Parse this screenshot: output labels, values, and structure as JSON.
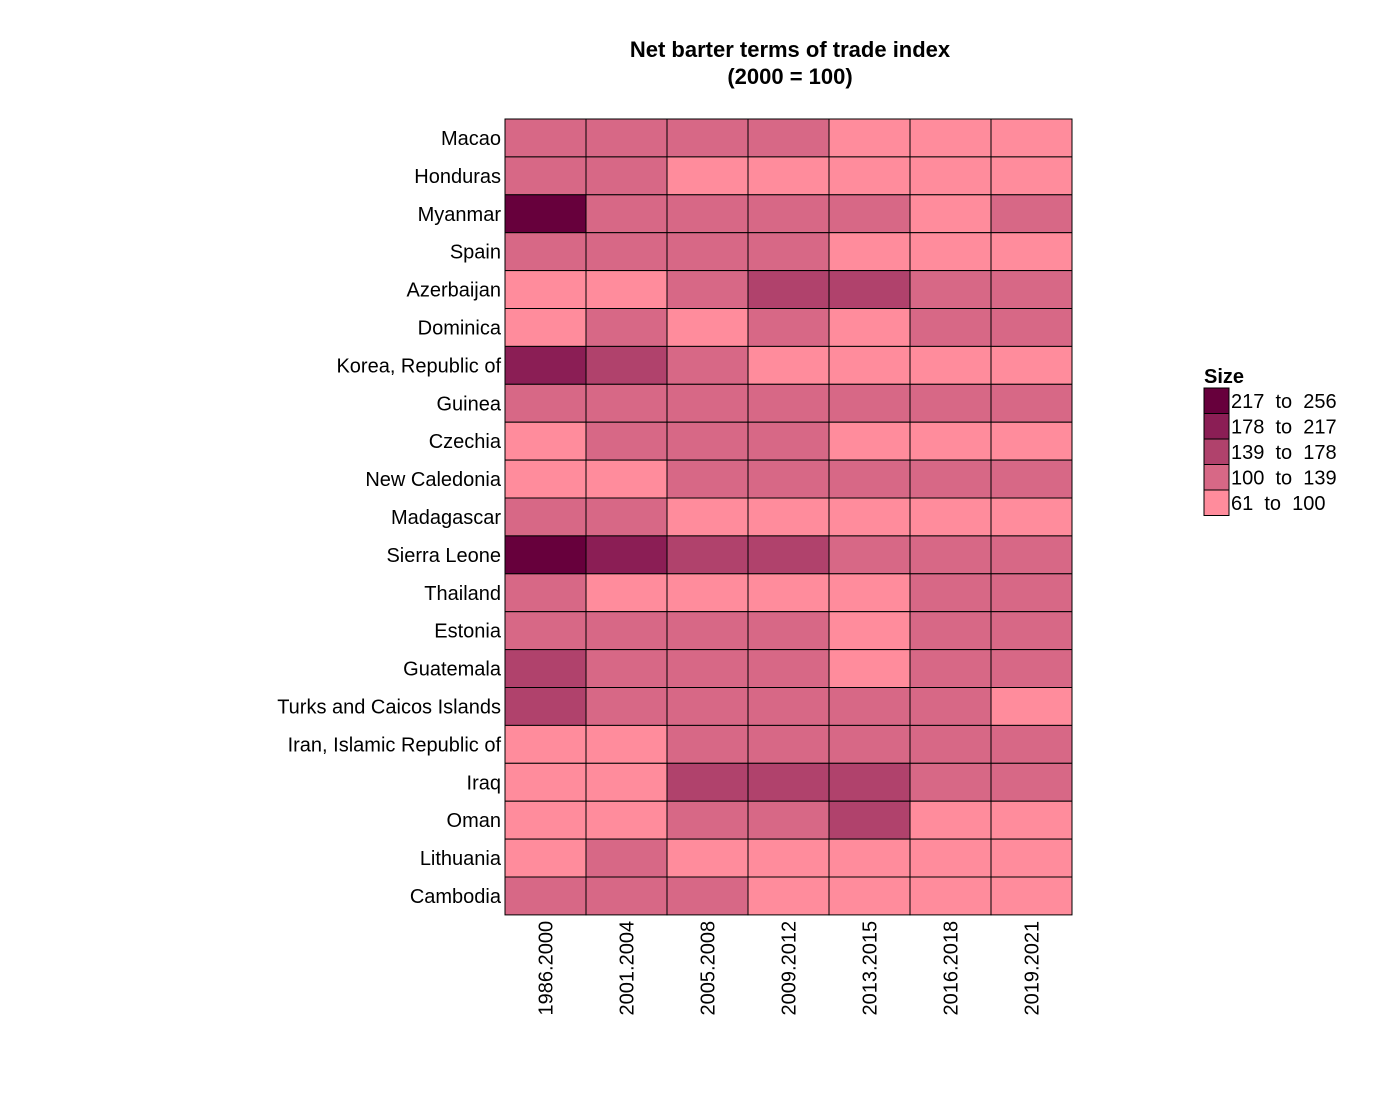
{
  "chart_data": {
    "type": "heatmap",
    "title": "Net barter terms of trade index",
    "subtitle": "(2000 = 100)",
    "columns": [
      "1986.2000",
      "2001.2004",
      "2005.2008",
      "2009.2012",
      "2013.2015",
      "2016.2018",
      "2019.2021"
    ],
    "rows": [
      "Macao",
      "Honduras",
      "Myanmar",
      "Spain",
      "Azerbaijan",
      "Dominica",
      "Korea, Republic of",
      "Guinea",
      "Czechia",
      "New Caledonia",
      "Madagascar",
      "Sierra Leone",
      "Thailand",
      "Estonia",
      "Guatemala",
      "Turks and Caicos Islands",
      "Iran, Islamic Republic of",
      "Iraq",
      "Oman",
      "Lithuania",
      "Cambodia"
    ],
    "bin_values": [
      [
        1,
        1,
        1,
        1,
        0,
        0,
        0
      ],
      [
        1,
        1,
        0,
        0,
        0,
        0,
        0
      ],
      [
        4,
        1,
        1,
        1,
        1,
        0,
        1
      ],
      [
        1,
        1,
        1,
        1,
        0,
        0,
        0
      ],
      [
        0,
        0,
        1,
        2,
        2,
        1,
        1
      ],
      [
        0,
        1,
        0,
        1,
        0,
        1,
        1
      ],
      [
        3,
        2,
        1,
        0,
        0,
        0,
        0
      ],
      [
        1,
        1,
        1,
        1,
        1,
        1,
        1
      ],
      [
        0,
        1,
        1,
        1,
        0,
        0,
        0
      ],
      [
        0,
        0,
        1,
        1,
        1,
        1,
        1
      ],
      [
        1,
        1,
        0,
        0,
        0,
        0,
        0
      ],
      [
        4,
        3,
        2,
        2,
        1,
        1,
        1
      ],
      [
        1,
        0,
        0,
        0,
        0,
        1,
        1
      ],
      [
        1,
        1,
        1,
        1,
        0,
        1,
        1
      ],
      [
        2,
        1,
        1,
        1,
        0,
        1,
        1
      ],
      [
        2,
        1,
        1,
        1,
        1,
        1,
        0
      ],
      [
        0,
        0,
        1,
        1,
        1,
        1,
        1
      ],
      [
        0,
        0,
        2,
        2,
        2,
        1,
        1
      ],
      [
        0,
        0,
        1,
        1,
        2,
        0,
        0
      ],
      [
        0,
        1,
        0,
        0,
        0,
        0,
        0
      ],
      [
        1,
        1,
        1,
        0,
        0,
        0,
        0
      ]
    ],
    "legend": {
      "title": "Size",
      "bins": [
        {
          "label": "217  to  256",
          "color": "#67003c"
        },
        {
          "label": "178  to  217",
          "color": "#8b1e55"
        },
        {
          "label": "139  to  178",
          "color": "#b0426c"
        },
        {
          "label": "100  to  139",
          "color": "#d76886"
        },
        {
          "label": "61  to  100",
          "color": "#ff8c9c"
        }
      ]
    },
    "bin_colors": [
      "#ff8c9c",
      "#d76886",
      "#b0426c",
      "#8b1e55",
      "#67003c"
    ]
  }
}
